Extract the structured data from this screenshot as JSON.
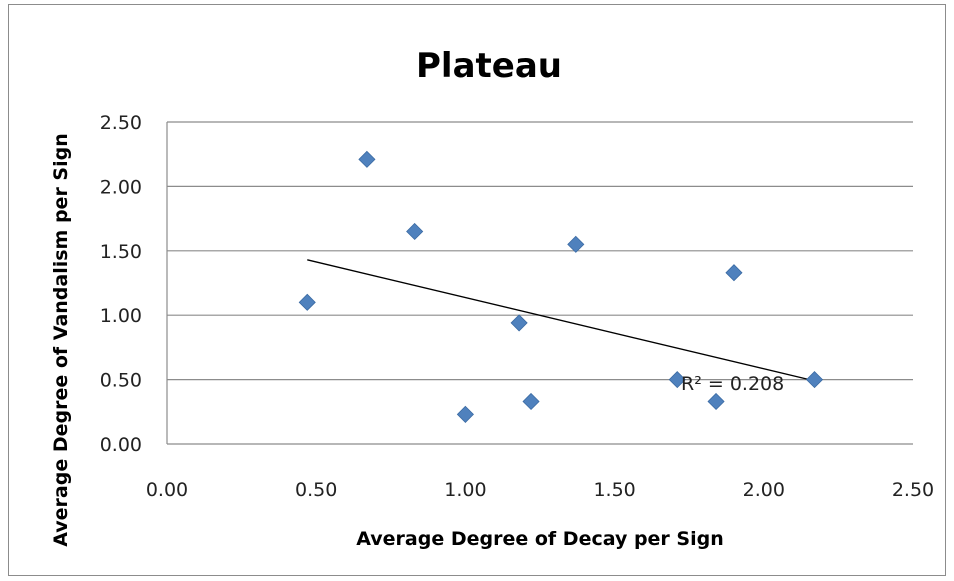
{
  "chart_data": {
    "type": "scatter",
    "title": "Plateau",
    "xlabel": "Average Degree of Decay per Sign",
    "ylabel": "Average Degree of Vandalism per Sign",
    "xlim": [
      0,
      2.5
    ],
    "ylim": [
      0,
      2.5
    ],
    "x_ticks": [
      "0.00",
      "0.50",
      "1.00",
      "1.50",
      "2.00",
      "2.50"
    ],
    "y_ticks": [
      "0.00",
      "0.50",
      "1.00",
      "1.50",
      "2.00",
      "2.50"
    ],
    "grid": "horizontal",
    "legend": "none",
    "marker_color": "#4f81bd",
    "series": [
      {
        "points": [
          {
            "x": 0.47,
            "y": 1.1
          },
          {
            "x": 0.67,
            "y": 2.21
          },
          {
            "x": 0.83,
            "y": 1.65
          },
          {
            "x": 1.0,
            "y": 0.23
          },
          {
            "x": 1.18,
            "y": 0.94
          },
          {
            "x": 1.22,
            "y": 0.33
          },
          {
            "x": 1.37,
            "y": 1.55
          },
          {
            "x": 1.71,
            "y": 0.5
          },
          {
            "x": 1.84,
            "y": 0.33
          },
          {
            "x": 1.9,
            "y": 1.33
          },
          {
            "x": 2.17,
            "y": 0.5
          }
        ]
      }
    ],
    "trendline": {
      "type": "linear",
      "x": [
        0.47,
        2.17
      ],
      "y": [
        1.43,
        0.49
      ],
      "color": "#000000"
    },
    "annotation": "R² = 0.208"
  }
}
